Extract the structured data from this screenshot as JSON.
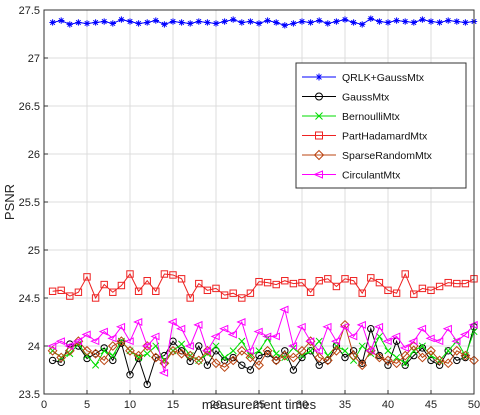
{
  "chart_data": {
    "type": "line",
    "xlabel": "measurement times",
    "ylabel": "PSNR",
    "xlim": [
      0,
      50
    ],
    "ylim": [
      23.5,
      27.5
    ],
    "xticks": [
      0,
      5,
      10,
      15,
      20,
      25,
      30,
      35,
      40,
      45,
      50
    ],
    "yticks": [
      23.5,
      24,
      24.5,
      25,
      25.5,
      26,
      26.5,
      27,
      27.5
    ],
    "grid": true,
    "legend_position": "center-right",
    "x": [
      1,
      2,
      3,
      4,
      5,
      6,
      7,
      8,
      9,
      10,
      11,
      12,
      13,
      14,
      15,
      16,
      17,
      18,
      19,
      20,
      21,
      22,
      23,
      24,
      25,
      26,
      27,
      28,
      29,
      30,
      31,
      32,
      33,
      34,
      35,
      36,
      37,
      38,
      39,
      40,
      41,
      42,
      43,
      44,
      45,
      46,
      47,
      48,
      49,
      50
    ],
    "series": [
      {
        "name": "QRLK+GaussMtx",
        "color": "#0000ff",
        "marker": "asterisk",
        "values": [
          27.37,
          27.39,
          27.35,
          27.37,
          27.36,
          27.37,
          27.38,
          27.36,
          27.4,
          27.38,
          27.36,
          27.37,
          27.39,
          27.35,
          27.38,
          27.37,
          27.36,
          27.38,
          27.37,
          27.36,
          27.38,
          27.4,
          27.37,
          27.38,
          27.36,
          27.39,
          27.37,
          27.34,
          27.36,
          27.38,
          27.37,
          27.39,
          27.36,
          27.38,
          27.4,
          27.37,
          27.35,
          27.41,
          27.38,
          27.37,
          27.39,
          27.38,
          27.37,
          27.4,
          27.38,
          27.37,
          27.39,
          27.38,
          27.37,
          27.38
        ]
      },
      {
        "name": "GaussMtx",
        "color": "#000000",
        "marker": "circle",
        "values": [
          23.85,
          23.83,
          24.02,
          24.0,
          23.87,
          23.92,
          23.98,
          23.85,
          24.03,
          23.7,
          23.87,
          23.6,
          23.88,
          23.9,
          24.05,
          23.95,
          23.84,
          24.0,
          23.8,
          23.95,
          23.85,
          23.88,
          23.8,
          23.75,
          23.9,
          23.92,
          23.85,
          23.95,
          23.75,
          23.88,
          23.95,
          23.8,
          23.85,
          24.0,
          23.88,
          23.95,
          23.82,
          24.18,
          23.9,
          23.8,
          24.05,
          23.8,
          23.9,
          23.98,
          23.85,
          23.8,
          23.95,
          23.85,
          23.88,
          24.2
        ]
      },
      {
        "name": "BernoulliMtx",
        "color": "#00dd00",
        "marker": "x",
        "values": [
          23.95,
          23.88,
          23.92,
          24.02,
          23.9,
          23.8,
          23.95,
          23.9,
          24.05,
          23.95,
          23.88,
          23.92,
          24.0,
          23.85,
          23.95,
          24.02,
          23.9,
          23.85,
          23.92,
          24.0,
          23.88,
          23.95,
          24.05,
          23.9,
          23.95,
          24.08,
          23.92,
          23.88,
          23.98,
          23.9,
          23.95,
          24.05,
          23.9,
          24.0,
          23.95,
          23.85,
          24.0,
          23.92,
          24.1,
          23.95,
          23.88,
          23.82,
          23.95,
          24.0,
          23.9,
          23.85,
          23.95,
          24.05,
          23.9,
          24.15
        ]
      },
      {
        "name": "PartHadamardMtx",
        "color": "#ee2222",
        "marker": "square",
        "values": [
          24.57,
          24.58,
          24.52,
          24.56,
          24.72,
          24.5,
          24.64,
          24.56,
          24.63,
          24.75,
          24.57,
          24.68,
          24.57,
          24.75,
          24.74,
          24.7,
          24.5,
          24.65,
          24.58,
          24.6,
          24.53,
          24.55,
          24.5,
          24.55,
          24.67,
          24.66,
          24.64,
          24.68,
          24.65,
          24.66,
          24.56,
          24.68,
          24.7,
          24.62,
          24.7,
          24.68,
          24.55,
          24.71,
          24.66,
          24.58,
          24.55,
          24.75,
          24.54,
          24.6,
          24.58,
          24.62,
          24.66,
          24.65,
          24.65,
          24.7
        ]
      },
      {
        "name": "SparseRandomMtx",
        "color": "#bb4411",
        "marker": "diamond",
        "values": [
          23.95,
          23.88,
          23.95,
          24.05,
          23.95,
          23.92,
          23.85,
          24.0,
          24.05,
          23.95,
          23.9,
          24.0,
          23.88,
          23.82,
          23.95,
          23.92,
          23.9,
          23.85,
          23.95,
          23.82,
          23.78,
          23.85,
          23.95,
          23.88,
          23.8,
          23.95,
          23.85,
          23.9,
          23.88,
          23.95,
          24.05,
          23.88,
          23.85,
          23.95,
          24.22,
          23.9,
          23.8,
          23.95,
          23.88,
          23.85,
          23.82,
          23.9,
          24.0,
          23.88,
          23.95,
          23.85,
          23.82,
          23.95,
          23.9,
          23.85
        ]
      },
      {
        "name": "CirculantMtx",
        "color": "#ff00ff",
        "marker": "triangle-left",
        "values": [
          24.0,
          24.05,
          24.0,
          24.05,
          24.12,
          24.05,
          24.15,
          24.08,
          24.2,
          24.05,
          24.25,
          24.0,
          24.1,
          23.72,
          24.25,
          24.18,
          24.0,
          24.22,
          23.95,
          24.1,
          24.18,
          24.12,
          24.25,
          23.95,
          24.15,
          24.1,
          24.1,
          24.38,
          24.0,
          24.2,
          24.05,
          23.95,
          24.2,
          24.05,
          24.2,
          24.1,
          24.22,
          23.95,
          24.2,
          24.05,
          24.1,
          23.98,
          24.05,
          24.18,
          24.08,
          24.05,
          24.18,
          24.05,
          24.12,
          24.22
        ]
      }
    ]
  }
}
